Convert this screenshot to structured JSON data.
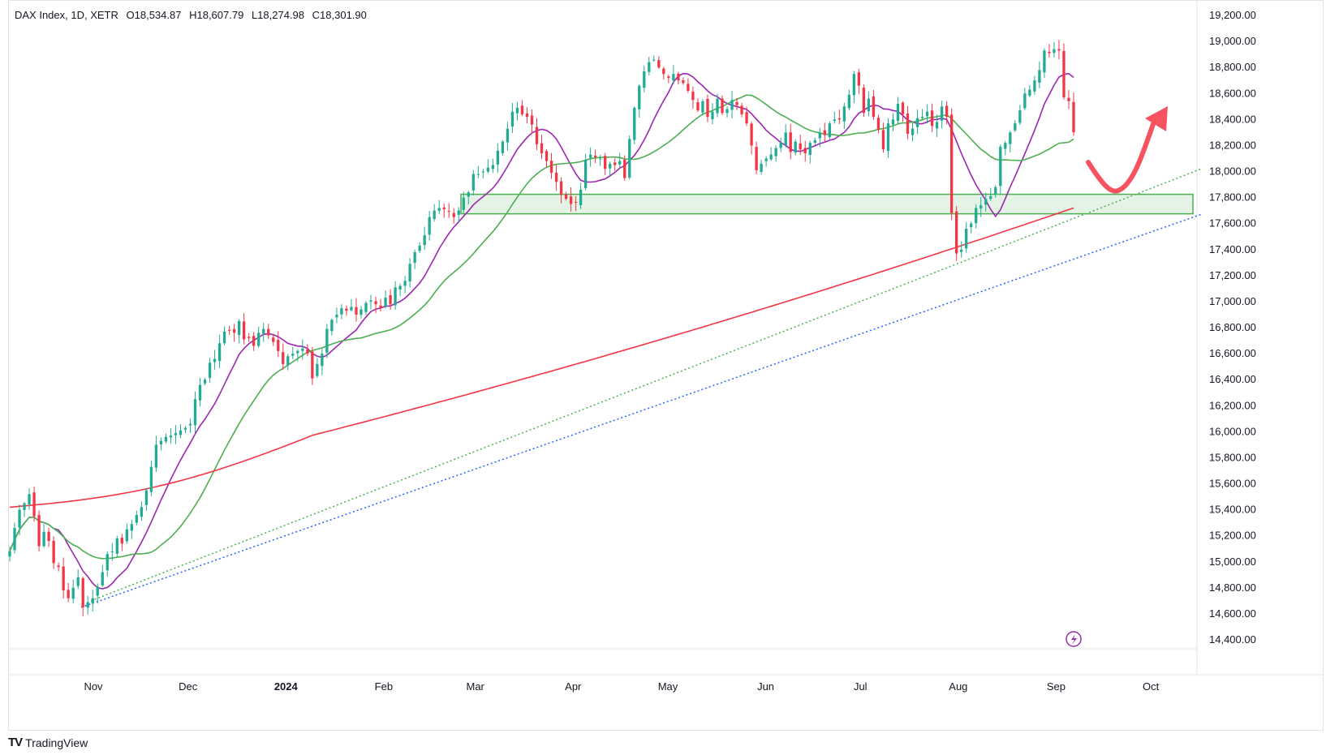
{
  "legend": {
    "symbol": "DAX Index, 1D, XETR",
    "open": "O18,534.87",
    "high": "H18,607.79",
    "low": "L18,274.98",
    "close": "C18,301.90"
  },
  "brand": {
    "logo_glyph": "TV",
    "name": "TradingView"
  },
  "colors": {
    "up": "#22ab94",
    "down": "#f23645",
    "sma20": "#9c27b0",
    "sma50": "#4caf50",
    "sma200": "#f23645",
    "trend_green": "#4caf50",
    "trend_blue": "#2962ff",
    "zone_fill": "#4caf50",
    "arrow": "#f7525f"
  },
  "chart_data": {
    "type": "candlestick",
    "ylim": [
      14300,
      19300
    ],
    "y_ticks": [
      "19,200.00",
      "19,000.00",
      "18,800.00",
      "18,600.00",
      "18,400.00",
      "18,200.00",
      "18,000.00",
      "17,800.00",
      "17,600.00",
      "17,400.00",
      "17,200.00",
      "17,000.00",
      "16,800.00",
      "16,600.00",
      "16,400.00",
      "16,200.00",
      "16,000.00",
      "15,800.00",
      "15,600.00",
      "15,400.00",
      "15,200.00",
      "15,000.00",
      "14,800.00",
      "14,600.00",
      "14,400.00"
    ],
    "y_tick_values": [
      19200,
      19000,
      18800,
      18600,
      18400,
      18200,
      18000,
      17800,
      17600,
      17400,
      17200,
      17000,
      16800,
      16600,
      16400,
      16200,
      16000,
      15800,
      15600,
      15400,
      15200,
      15000,
      14800,
      14600,
      14400
    ],
    "x_ticks": [
      {
        "label": "Nov",
        "date": "2023-11-01"
      },
      {
        "label": "Dec",
        "date": "2023-12-01"
      },
      {
        "label": "2024",
        "date": "2024-01-01",
        "bold": true
      },
      {
        "label": "Feb",
        "date": "2024-02-01"
      },
      {
        "label": "Mar",
        "date": "2024-03-01"
      },
      {
        "label": "Apr",
        "date": "2024-04-01"
      },
      {
        "label": "May",
        "date": "2024-05-01"
      },
      {
        "label": "Jun",
        "date": "2024-06-01"
      },
      {
        "label": "Jul",
        "date": "2024-07-01"
      },
      {
        "label": "Aug",
        "date": "2024-08-01"
      },
      {
        "label": "Sep",
        "date": "2024-09-01"
      },
      {
        "label": "Oct",
        "date": "2024-10-01"
      }
    ],
    "x_range": [
      "2023-10-02",
      "2024-10-30"
    ],
    "closes": [
      15080,
      15260,
      15400,
      15450,
      15520,
      15350,
      15120,
      15230,
      15160,
      14990,
      14960,
      14780,
      14720,
      14800,
      14880,
      14650,
      14690,
      14720,
      14810,
      14920,
      15060,
      15080,
      15180,
      15140,
      15250,
      15290,
      15360,
      15420,
      15550,
      15730,
      15900,
      15930,
      15960,
      15970,
      15990,
      16010,
      16030,
      16060,
      16250,
      16360,
      16400,
      16530,
      16560,
      16680,
      16770,
      16780,
      16760,
      16850,
      16710,
      16720,
      16660,
      16760,
      16790,
      16740,
      16690,
      16620,
      16520,
      16580,
      16600,
      16620,
      16640,
      16600,
      16410,
      16520,
      16600,
      16790,
      16860,
      16900,
      16950,
      16930,
      16960,
      16900,
      16940,
      16990,
      17010,
      16980,
      16950,
      17030,
      16980,
      17110,
      17120,
      17160,
      17290,
      17380,
      17430,
      17510,
      17650,
      17700,
      17720,
      17710,
      17690,
      17650,
      17700,
      17800,
      17840,
      17980,
      17980,
      18000,
      18030,
      18050,
      18160,
      18230,
      18330,
      18460,
      18490,
      18440,
      18420,
      18360,
      18210,
      18140,
      18080,
      17990,
      17920,
      17820,
      17790,
      17750,
      17760,
      17860,
      18090,
      18130,
      18110,
      18100,
      18020,
      18060,
      18050,
      18080,
      17950,
      18250,
      18490,
      18660,
      18770,
      18840,
      18860,
      18800,
      18750,
      18720,
      18750,
      18700,
      18680,
      18620,
      18550,
      18470,
      18540,
      18420,
      18460,
      18560,
      18450,
      18480,
      18550,
      18510,
      18440,
      18370,
      18200,
      18010,
      18060,
      18100,
      18130,
      18180,
      18220,
      18300,
      18150,
      18230,
      18170,
      18140,
      18220,
      18240,
      18300,
      18280,
      18370,
      18400,
      18400,
      18500,
      18590,
      18750,
      18660,
      18450,
      18560,
      18420,
      18320,
      18170,
      18370,
      18400,
      18520,
      18440,
      18290,
      18330,
      18410,
      18420,
      18460,
      18350,
      18380,
      18500,
      18420,
      17680,
      17370,
      17400,
      17560,
      17600,
      17720,
      17740,
      17790,
      17810,
      17880,
      18190,
      18220,
      18300,
      18370,
      18470,
      18600,
      18630,
      18700,
      18780,
      18930,
      18910,
      18940,
      18930,
      18570,
      18540,
      18301.9
    ]
  }
}
